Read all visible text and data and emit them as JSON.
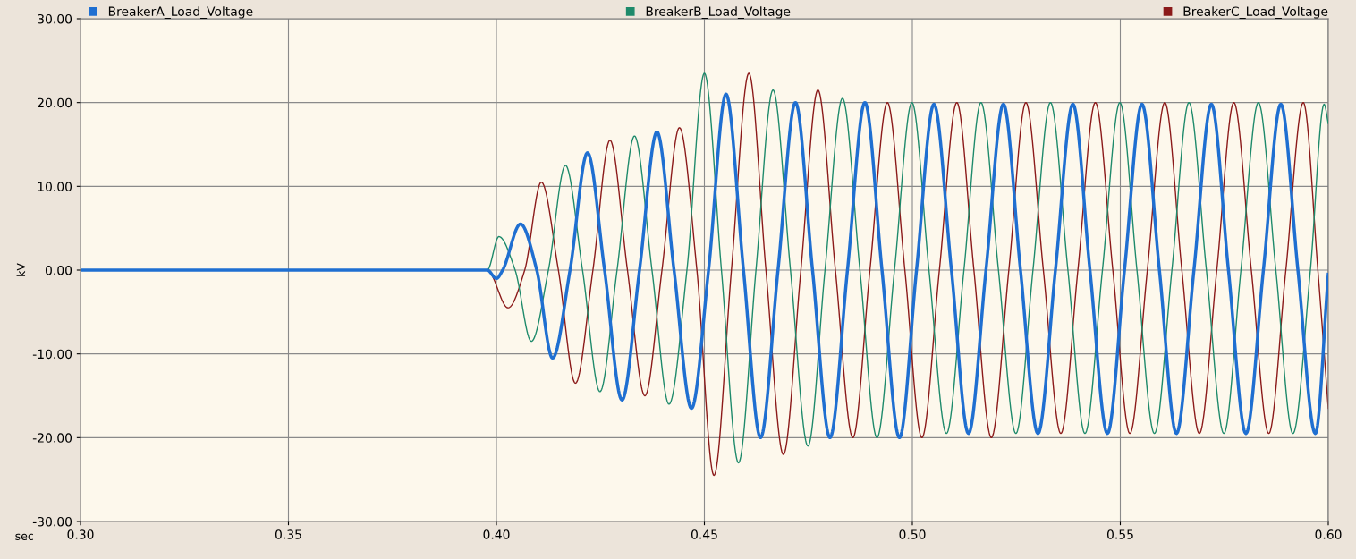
{
  "chart_data": {
    "type": "line",
    "xlabel": "sec",
    "ylabel": "kV",
    "xlim": [
      0.3,
      0.6
    ],
    "ylim": [
      -30,
      30
    ],
    "xticks": [
      {
        "value": 0.3,
        "label": "0.30"
      },
      {
        "value": 0.35,
        "label": "0.35"
      },
      {
        "value": 0.4,
        "label": "0.40"
      },
      {
        "value": 0.45,
        "label": "0.45"
      },
      {
        "value": 0.5,
        "label": "0.50"
      },
      {
        "value": 0.55,
        "label": "0.55"
      },
      {
        "value": 0.6,
        "label": "0.60"
      }
    ],
    "yticks": [
      {
        "value": -30,
        "label": "-30.00"
      },
      {
        "value": -20,
        "label": "-20.00"
      },
      {
        "value": -10,
        "label": "-10.00"
      },
      {
        "value": 0,
        "label": "0.00"
      },
      {
        "value": 10,
        "label": "10.00"
      },
      {
        "value": 20,
        "label": "20.00"
      },
      {
        "value": 30,
        "label": "30.00"
      }
    ],
    "grid": true,
    "legend": "top",
    "marker": "none",
    "line_style": "solid",
    "series": [
      {
        "name": "BreakerC_Load_Voltage",
        "color": "#8b1a1a",
        "x": [
          0.3,
          0.35,
          0.3978,
          0.4028,
          0.4068,
          0.4108,
          0.4149,
          0.419,
          0.4232,
          0.4273,
          0.4315,
          0.4357,
          0.4398,
          0.444,
          0.4482,
          0.4523,
          0.4565,
          0.4607,
          0.4648,
          0.469,
          0.4732,
          0.4773,
          0.4815,
          0.4857,
          0.4898,
          0.494,
          0.4982,
          0.5023,
          0.5065,
          0.5107,
          0.5148,
          0.519,
          0.5232,
          0.5273,
          0.5315,
          0.5357,
          0.5398,
          0.544,
          0.5482,
          0.5523,
          0.5565,
          0.5607,
          0.5648,
          0.569,
          0.5732,
          0.5773,
          0.5815,
          0.5857,
          0.5898,
          0.594,
          0.5975,
          0.6
        ],
        "values": [
          0,
          0,
          0,
          -4.5,
          0,
          10.5,
          0,
          -13.5,
          0,
          15.5,
          0,
          -15,
          0,
          17,
          0,
          -24.5,
          0,
          23.5,
          0,
          -22,
          0,
          21.5,
          0,
          -20,
          0,
          20,
          0,
          -20,
          0,
          20,
          0,
          -20,
          0,
          20,
          0,
          -19.5,
          0,
          20,
          0,
          -19.5,
          0,
          20,
          0,
          -19.5,
          0,
          20,
          0,
          -19.5,
          0,
          20,
          0,
          -16.5
        ]
      },
      {
        "name": "BreakerB_Load_Voltage",
        "color": "#1e8a6b",
        "x": [
          0.3,
          0.35,
          0.3978,
          0.4006,
          0.4045,
          0.4084,
          0.4125,
          0.4166,
          0.4207,
          0.4249,
          0.429,
          0.4332,
          0.4374,
          0.4415,
          0.4458,
          0.45,
          0.4541,
          0.4582,
          0.4624,
          0.4665,
          0.4707,
          0.4749,
          0.479,
          0.4832,
          0.4874,
          0.4915,
          0.4957,
          0.4999,
          0.504,
          0.5082,
          0.5124,
          0.5165,
          0.5207,
          0.5249,
          0.529,
          0.5332,
          0.5374,
          0.5415,
          0.5457,
          0.5499,
          0.554,
          0.5582,
          0.5624,
          0.5665,
          0.5707,
          0.5749,
          0.579,
          0.5832,
          0.5874,
          0.5915,
          0.5957,
          0.599,
          0.6
        ],
        "values": [
          0,
          0,
          0,
          4,
          0,
          -8.5,
          0,
          12.5,
          0,
          -14.5,
          0,
          16,
          0,
          -16,
          0,
          23.5,
          0,
          -23,
          0,
          21.5,
          0,
          -21,
          0,
          20.5,
          0,
          -20,
          0,
          20,
          0,
          -19.5,
          0,
          20,
          0,
          -19.5,
          0,
          20,
          0,
          -19.5,
          0,
          20,
          0,
          -19.5,
          0,
          20,
          0,
          -19.5,
          0,
          20,
          0,
          -19.5,
          0,
          19.8,
          17.5
        ]
      },
      {
        "name": "BreakerA_Load_Voltage",
        "color": "#1f6fd1",
        "x": [
          0.3,
          0.35,
          0.3978,
          0.4,
          0.4015,
          0.4058,
          0.4097,
          0.4135,
          0.4177,
          0.4219,
          0.426,
          0.4302,
          0.4344,
          0.4386,
          0.4427,
          0.4469,
          0.451,
          0.4552,
          0.4594,
          0.4635,
          0.4677,
          0.4719,
          0.476,
          0.4802,
          0.4844,
          0.4886,
          0.4927,
          0.4969,
          0.501,
          0.5052,
          0.5094,
          0.5135,
          0.5177,
          0.5219,
          0.526,
          0.5302,
          0.5344,
          0.5386,
          0.5427,
          0.5469,
          0.551,
          0.5552,
          0.5594,
          0.5635,
          0.5677,
          0.5719,
          0.576,
          0.5802,
          0.5844,
          0.5886,
          0.5927,
          0.5969,
          0.6
        ],
        "values": [
          0,
          0,
          0,
          -1,
          0,
          5.5,
          0,
          -10.5,
          0,
          14,
          0,
          -15.5,
          0,
          16.5,
          0,
          -16.5,
          0,
          21,
          0,
          -20,
          0,
          20,
          0,
          -20,
          0,
          20,
          0,
          -20,
          0,
          19.8,
          0,
          -19.5,
          0,
          19.8,
          0,
          -19.5,
          0,
          19.8,
          0,
          -19.5,
          0,
          19.8,
          0,
          -19.5,
          0,
          19.8,
          0,
          -19.5,
          0,
          19.8,
          0,
          -19.5,
          -0.5
        ]
      }
    ]
  }
}
